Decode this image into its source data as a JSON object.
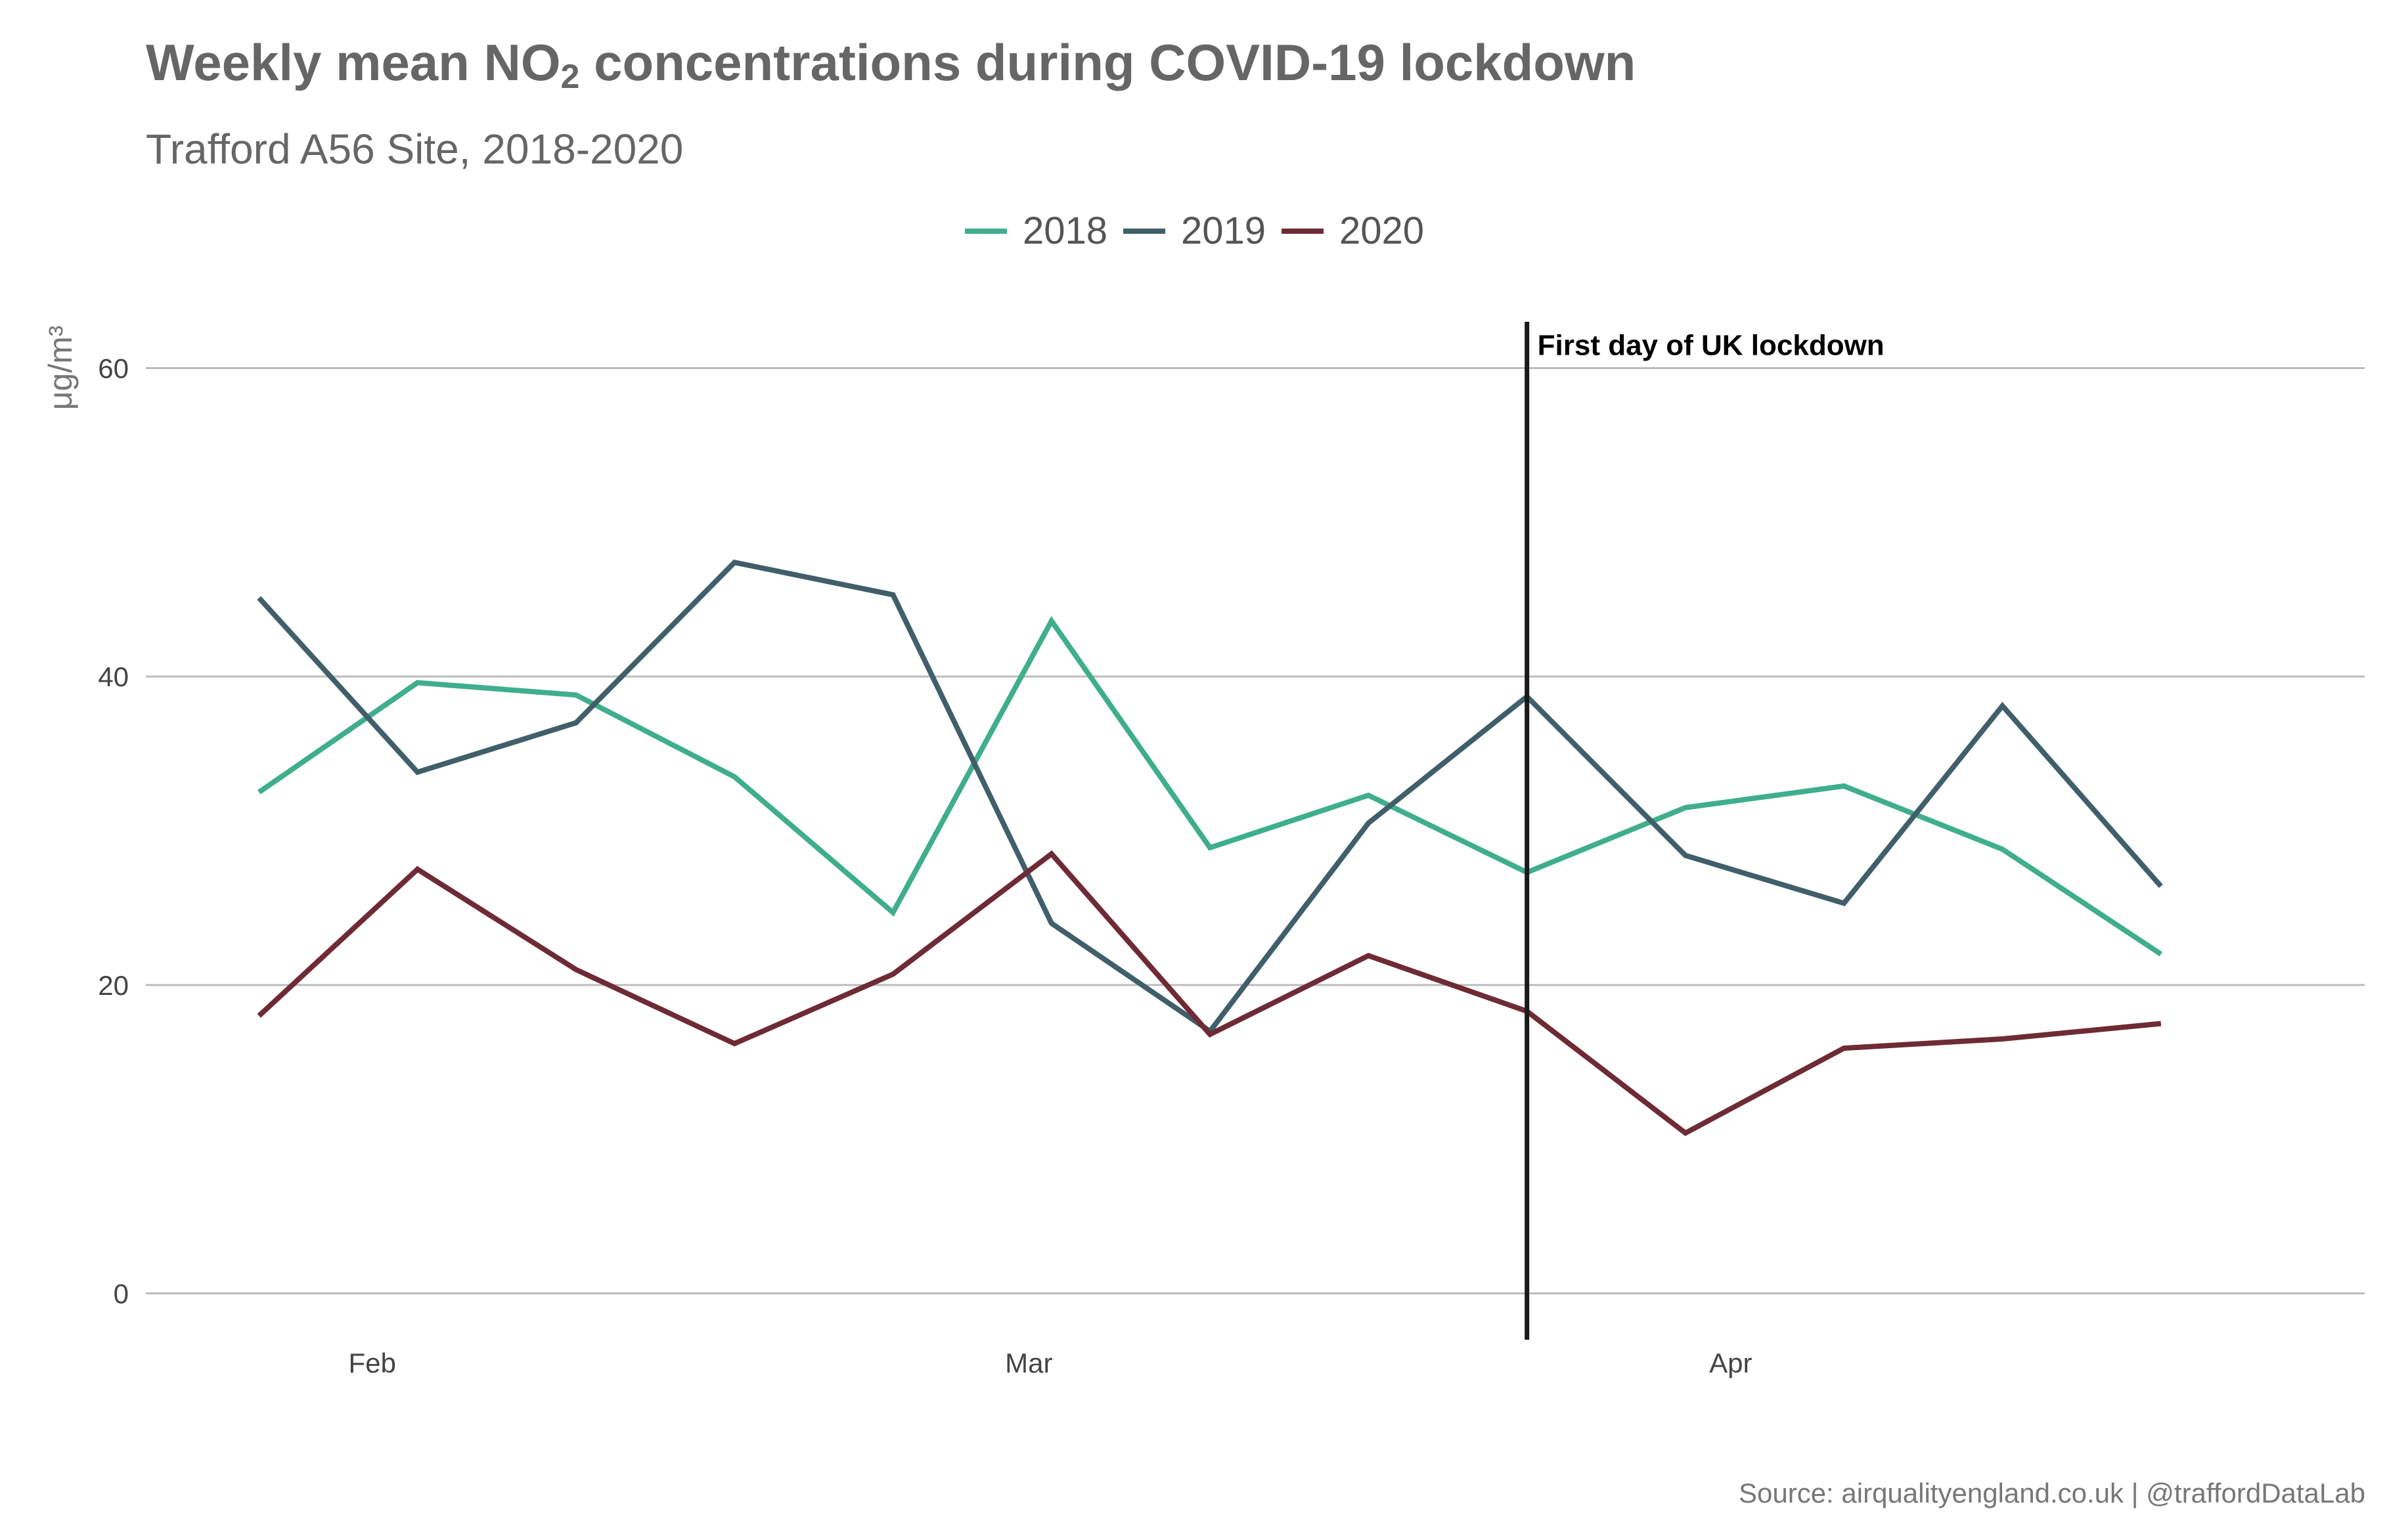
{
  "title": {
    "prefix": "Weekly mean NO",
    "subscript": "2",
    "suffix": " concentrations during COVID-19 lockdown"
  },
  "subtitle": "Trafford A56 Site, 2018-2020",
  "caption": "Source: airqualityengland.co.uk  |  @traffordDataLab",
  "chart_data": {
    "type": "line",
    "title": "Weekly mean NO2 concentrations during COVID-19 lockdown",
    "subtitle": "Trafford A56 Site, 2018-2020",
    "xlabel": "",
    "ylabel": "μg/m³",
    "ylim": [
      -3,
      63
    ],
    "xlim": [
      "2020-01-22",
      "2020-04-29"
    ],
    "y_ticks": [
      0,
      20,
      40,
      60
    ],
    "x_ticks": [
      {
        "date": "2020-02-01",
        "label": "Feb"
      },
      {
        "date": "2020-03-01",
        "label": "Mar"
      },
      {
        "date": "2020-04-01",
        "label": "Apr"
      }
    ],
    "grid": "horizontal",
    "legend": "top-center",
    "x": [
      "2020-01-27",
      "2020-02-03",
      "2020-02-10",
      "2020-02-17",
      "2020-02-24",
      "2020-03-02",
      "2020-03-09",
      "2020-03-16",
      "2020-03-23",
      "2020-03-30",
      "2020-04-06",
      "2020-04-13",
      "2020-04-20"
    ],
    "series": [
      {
        "name": "2018",
        "color": "#3fae8d",
        "values": [
          32.5,
          39.6,
          38.8,
          33.5,
          24.7,
          43.6,
          28.9,
          32.3,
          27.3,
          31.5,
          32.9,
          28.8,
          22.0
        ]
      },
      {
        "name": "2019",
        "color": "#405f6a",
        "values": [
          45.1,
          33.8,
          37.0,
          47.4,
          45.3,
          24.0,
          17.0,
          30.5,
          38.7,
          28.4,
          25.3,
          38.1,
          26.4
        ]
      },
      {
        "name": "2020",
        "color": "#6e2b35",
        "values": [
          18.0,
          27.5,
          21.0,
          16.2,
          20.7,
          28.5,
          16.8,
          21.9,
          18.3,
          10.4,
          15.9,
          16.5,
          17.5
        ]
      }
    ],
    "annotations": [
      {
        "type": "vline",
        "date": "2020-03-23",
        "label": "First day of UK lockdown",
        "color": "#1a1a1a"
      }
    ]
  }
}
